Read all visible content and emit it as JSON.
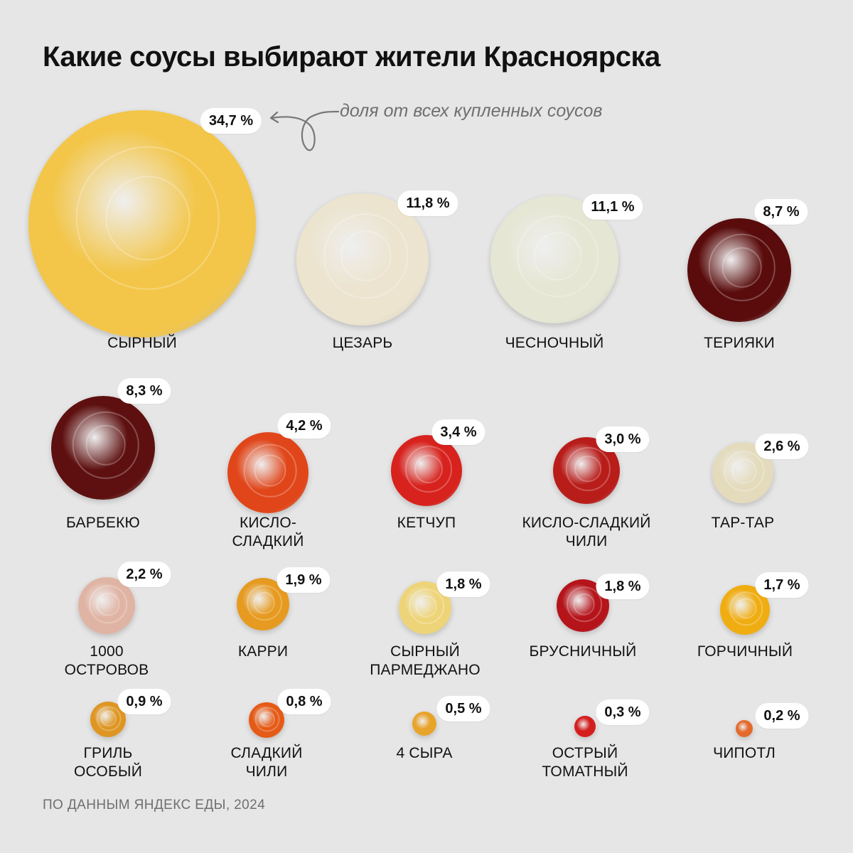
{
  "title": "Какие соусы выбирают жители Красноярска",
  "annotation": "доля от всех купленных соусов",
  "source": "ПО ДАННЫМ ЯНДЕКС ЕДЫ, 2024",
  "chart_data": {
    "type": "bubble",
    "title": "Какие соусы выбирают жители Красноярска",
    "value_unit": "%",
    "categories": [
      "СЫРНЫЙ",
      "ЦЕЗАРЬ",
      "ЧЕСНОЧНЫЙ",
      "ТЕРИЯКИ",
      "БАРБЕКЮ",
      "КИСЛО-\nСЛАДКИЙ",
      "КЕТЧУП",
      "КИСЛО-СЛАДКИЙ\nЧИЛИ",
      "ТАР-ТАР",
      "1000\nОСТРОВОВ",
      "КАРРИ",
      "СЫРНЫЙ\nПАРМЕДЖАНО",
      "БРУСНИЧНЫЙ",
      "ГОРЧИЧНЫЙ",
      "ГРИЛЬ\nОСОБЫЙ",
      "СЛАДКИЙ\nЧИЛИ",
      "4 СЫРА",
      "ОСТРЫЙ\nТОМАТНЫЙ",
      "ЧИПОТЛ"
    ],
    "values": [
      34.7,
      11.8,
      11.1,
      8.7,
      8.3,
      4.2,
      3.4,
      3.0,
      2.6,
      2.2,
      1.9,
      1.8,
      1.8,
      1.7,
      0.9,
      0.8,
      0.5,
      0.3,
      0.2
    ],
    "value_labels": [
      "34,7 %",
      "11,8 %",
      "11,1 %",
      "8,7 %",
      "8,3 %",
      "4,2 %",
      "3,4 %",
      "3,0 %",
      "2,6 %",
      "2,2 %",
      "1,9 %",
      "1,8 %",
      "1,8 %",
      "1,7 %",
      "0,9 %",
      "0,8 %",
      "0,5 %",
      "0,3 %",
      "0,2 %"
    ],
    "colors": [
      "#f3c64a",
      "#ece4cf",
      "#e6e6d4",
      "#5a0c0c",
      "#5e1010",
      "#e0461a",
      "#d7221d",
      "#b81d1a",
      "#e4dbbd",
      "#e0b4a4",
      "#e69a1f",
      "#eed478",
      "#b5141b",
      "#f0ad12",
      "#de9522",
      "#e55a16",
      "#e8a42a",
      "#d41e1e",
      "#e46a2c"
    ]
  }
}
